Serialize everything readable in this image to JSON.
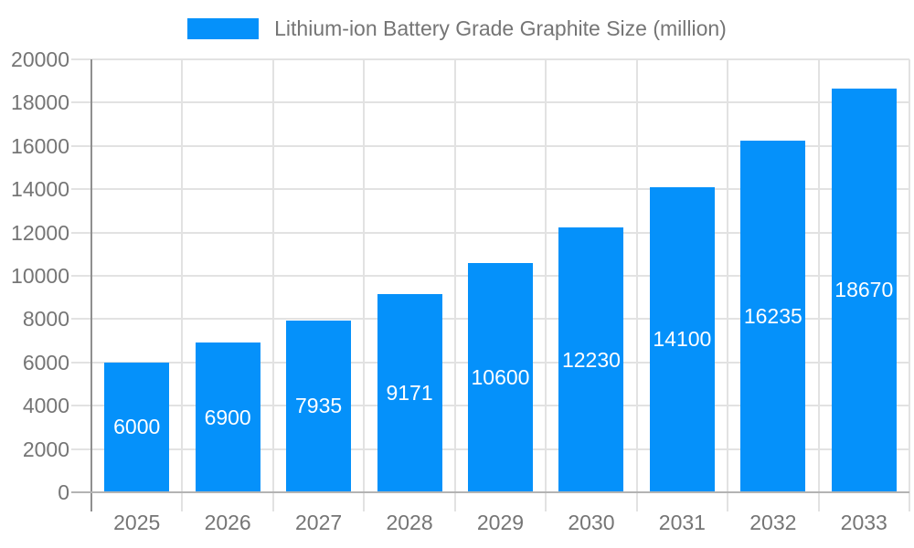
{
  "chart_data": {
    "type": "bar",
    "title": "Lithium-ion Battery Grade Graphite Size (million)",
    "categories": [
      "2025",
      "2026",
      "2027",
      "2028",
      "2029",
      "2030",
      "2031",
      "2032",
      "2033"
    ],
    "values": [
      6000,
      6900,
      7935,
      9171,
      10600,
      12230,
      14100,
      16235,
      18670
    ],
    "xlabel": "",
    "ylabel": "",
    "ylim": [
      0,
      20000
    ],
    "ytick_step": 2000,
    "ytick_labels": [
      "0",
      "2000",
      "4000",
      "6000",
      "8000",
      "10000",
      "12000",
      "14000",
      "16000",
      "18000",
      "20000"
    ],
    "grid": true,
    "legend_position": "top-center",
    "value_labels": "inside-center-white",
    "colors": {
      "bar": "#0591fa",
      "value_label": "#ffffff",
      "axis_text": "#757575",
      "grid": "#e2e2e2",
      "y_axis": "#8f8f8f",
      "x_axis": "#b3b3b3",
      "background": "#ffffff"
    }
  }
}
